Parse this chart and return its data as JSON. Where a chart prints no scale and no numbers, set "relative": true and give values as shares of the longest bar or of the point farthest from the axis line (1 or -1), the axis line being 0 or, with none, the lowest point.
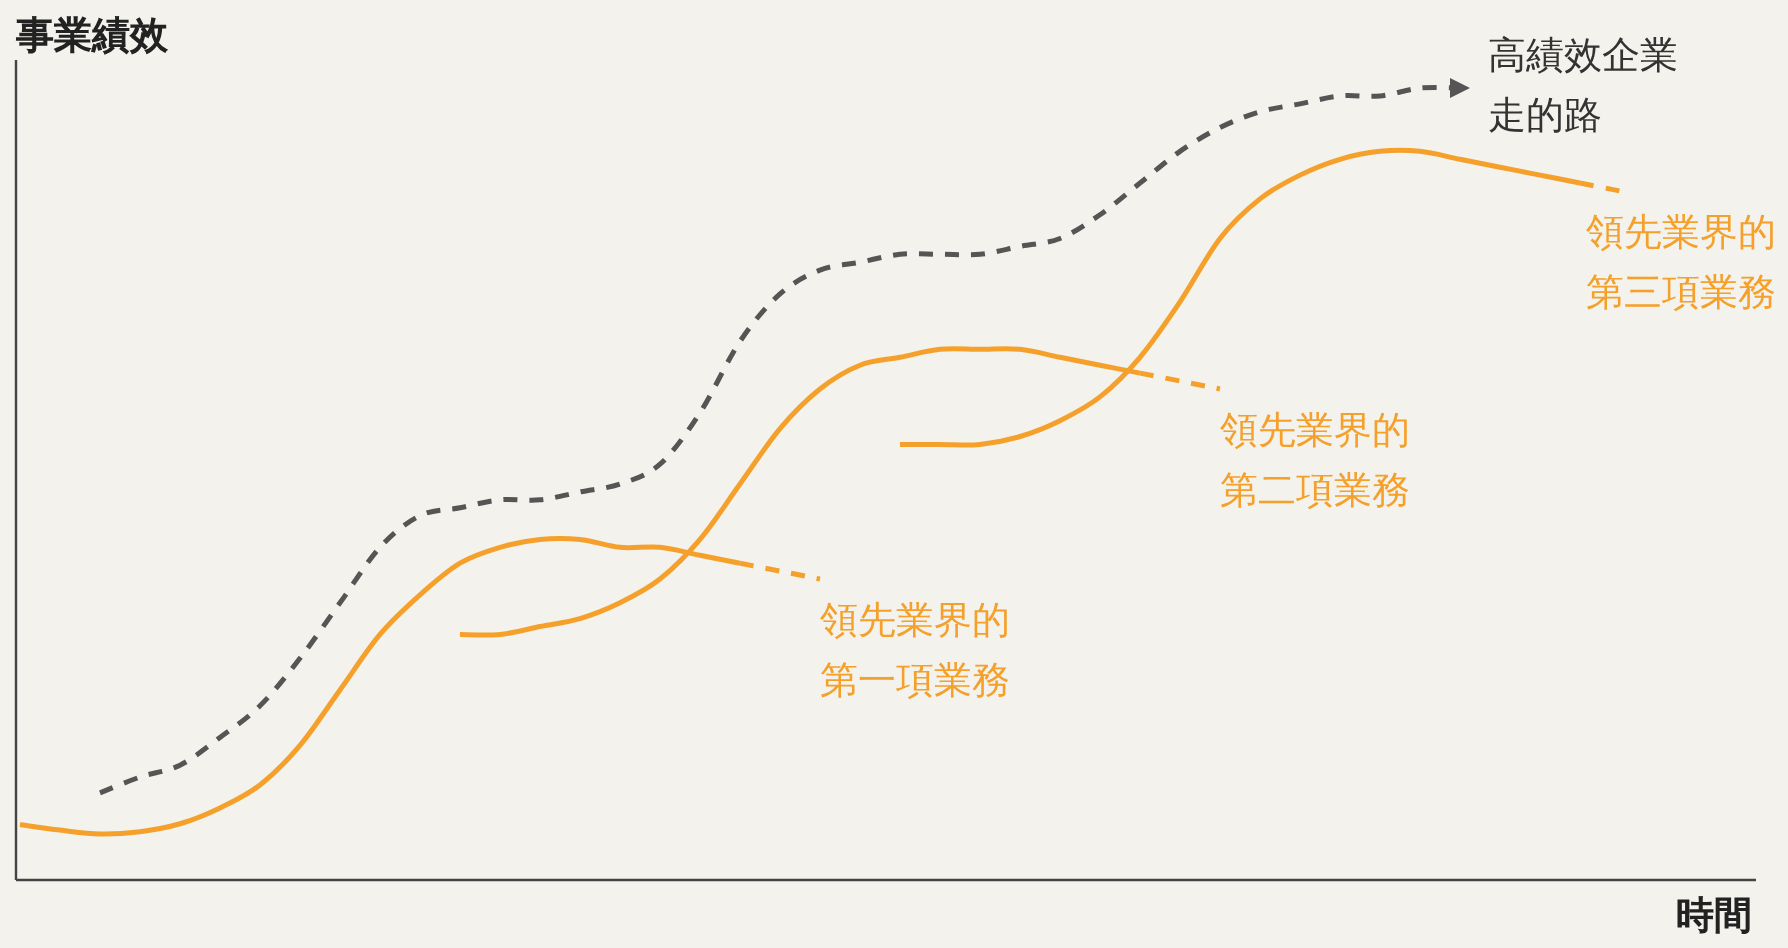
{
  "chart_data": {
    "type": "line",
    "relative": true,
    "ylabel": "事業績效",
    "xlabel": "時間",
    "grid": false,
    "categories": [
      null,
      null,
      null,
      null,
      null,
      null,
      null,
      null,
      null,
      null,
      null,
      null,
      null,
      null,
      null,
      null,
      null,
      null,
      null,
      null,
      null,
      null,
      null,
      null,
      null,
      null,
      null,
      null,
      null,
      null,
      null,
      null,
      null,
      null,
      null,
      null,
      null,
      null,
      null,
      null,
      null,
      null,
      null,
      null
    ],
    "series": [
      {
        "name": "高績效企業走的路",
        "color": "#555555",
        "line_style": "dashed",
        "values": [
          null,
          null,
          0.11,
          0.13,
          0.145,
          0.18,
          0.22,
          0.28,
          0.35,
          0.42,
          0.46,
          0.47,
          0.48,
          0.48,
          0.49,
          0.5,
          0.525,
          0.59,
          0.68,
          0.74,
          0.77,
          0.78,
          0.79,
          0.79,
          0.79,
          0.8,
          0.81,
          0.84,
          0.88,
          0.92,
          0.95,
          0.97,
          0.98,
          0.99,
          0.99,
          1.0,
          1.0,
          null,
          null,
          null,
          null,
          null,
          null,
          null
        ]
      },
      {
        "color": "#f5a02a",
        "line_style": "solid",
        "values": [
          0.07,
          0.063,
          0.058,
          0.061,
          0.071,
          0.091,
          0.12,
          0.17,
          0.24,
          0.31,
          0.36,
          0.4,
          0.42,
          0.43,
          0.43,
          0.42,
          0.42,
          0.41,
          0.4,
          null,
          null,
          null,
          null,
          null,
          null,
          null,
          null,
          null,
          null,
          null,
          null,
          null,
          null,
          null,
          null,
          null,
          null,
          null,
          null,
          null,
          null,
          null,
          null,
          null
        ]
      },
      {
        "name": "領先業界的第一項業務",
        "color": "#f5a02a",
        "line_style": "dashed",
        "values": [
          null,
          null,
          null,
          null,
          null,
          null,
          null,
          null,
          null,
          null,
          null,
          null,
          null,
          null,
          null,
          null,
          null,
          null,
          0.4,
          0.39,
          0.38,
          null,
          null,
          null,
          null,
          null,
          null,
          null,
          null,
          null,
          null,
          null,
          null,
          null,
          null,
          null,
          null,
          null,
          null,
          null,
          null,
          null,
          null,
          null
        ]
      },
      {
        "color": "#f5a02a",
        "line_style": "solid",
        "values": [
          null,
          null,
          null,
          null,
          null,
          null,
          null,
          null,
          null,
          null,
          null,
          0.31,
          0.31,
          0.32,
          0.33,
          0.35,
          0.38,
          0.43,
          0.5,
          0.57,
          0.62,
          0.65,
          0.66,
          0.67,
          0.67,
          0.67,
          0.66,
          0.65,
          0.64,
          null,
          null,
          null,
          null,
          null,
          null,
          null,
          null,
          null,
          null,
          null,
          null,
          null,
          null,
          null
        ]
      },
      {
        "name": "領先業界的第二項業務",
        "color": "#f5a02a",
        "line_style": "dashed",
        "values": [
          null,
          null,
          null,
          null,
          null,
          null,
          null,
          null,
          null,
          null,
          null,
          null,
          null,
          null,
          null,
          null,
          null,
          null,
          null,
          null,
          null,
          null,
          null,
          null,
          null,
          null,
          null,
          null,
          0.64,
          0.63,
          0.62,
          null,
          null,
          null,
          null,
          null,
          null,
          null,
          null,
          null,
          null,
          null,
          null,
          null
        ]
      },
      {
        "color": "#f5a02a",
        "line_style": "solid",
        "values": [
          null,
          null,
          null,
          null,
          null,
          null,
          null,
          null,
          null,
          null,
          null,
          null,
          null,
          null,
          null,
          null,
          null,
          null,
          null,
          null,
          null,
          null,
          0.55,
          0.55,
          0.55,
          0.56,
          0.58,
          0.61,
          0.66,
          0.73,
          0.81,
          0.86,
          0.89,
          0.91,
          0.92,
          0.92,
          0.91,
          0.9,
          0.89,
          0.88,
          null,
          null,
          null,
          null
        ]
      },
      {
        "name": "領先業界的第三項業務",
        "color": "#f5a02a",
        "line_style": "dashed",
        "values": [
          null,
          null,
          null,
          null,
          null,
          null,
          null,
          null,
          null,
          null,
          null,
          null,
          null,
          null,
          null,
          null,
          null,
          null,
          null,
          null,
          null,
          null,
          null,
          null,
          null,
          null,
          null,
          null,
          null,
          null,
          null,
          null,
          null,
          null,
          null,
          null,
          null,
          null,
          null,
          0.88,
          0.87,
          null,
          null,
          null
        ]
      }
    ]
  }
}
